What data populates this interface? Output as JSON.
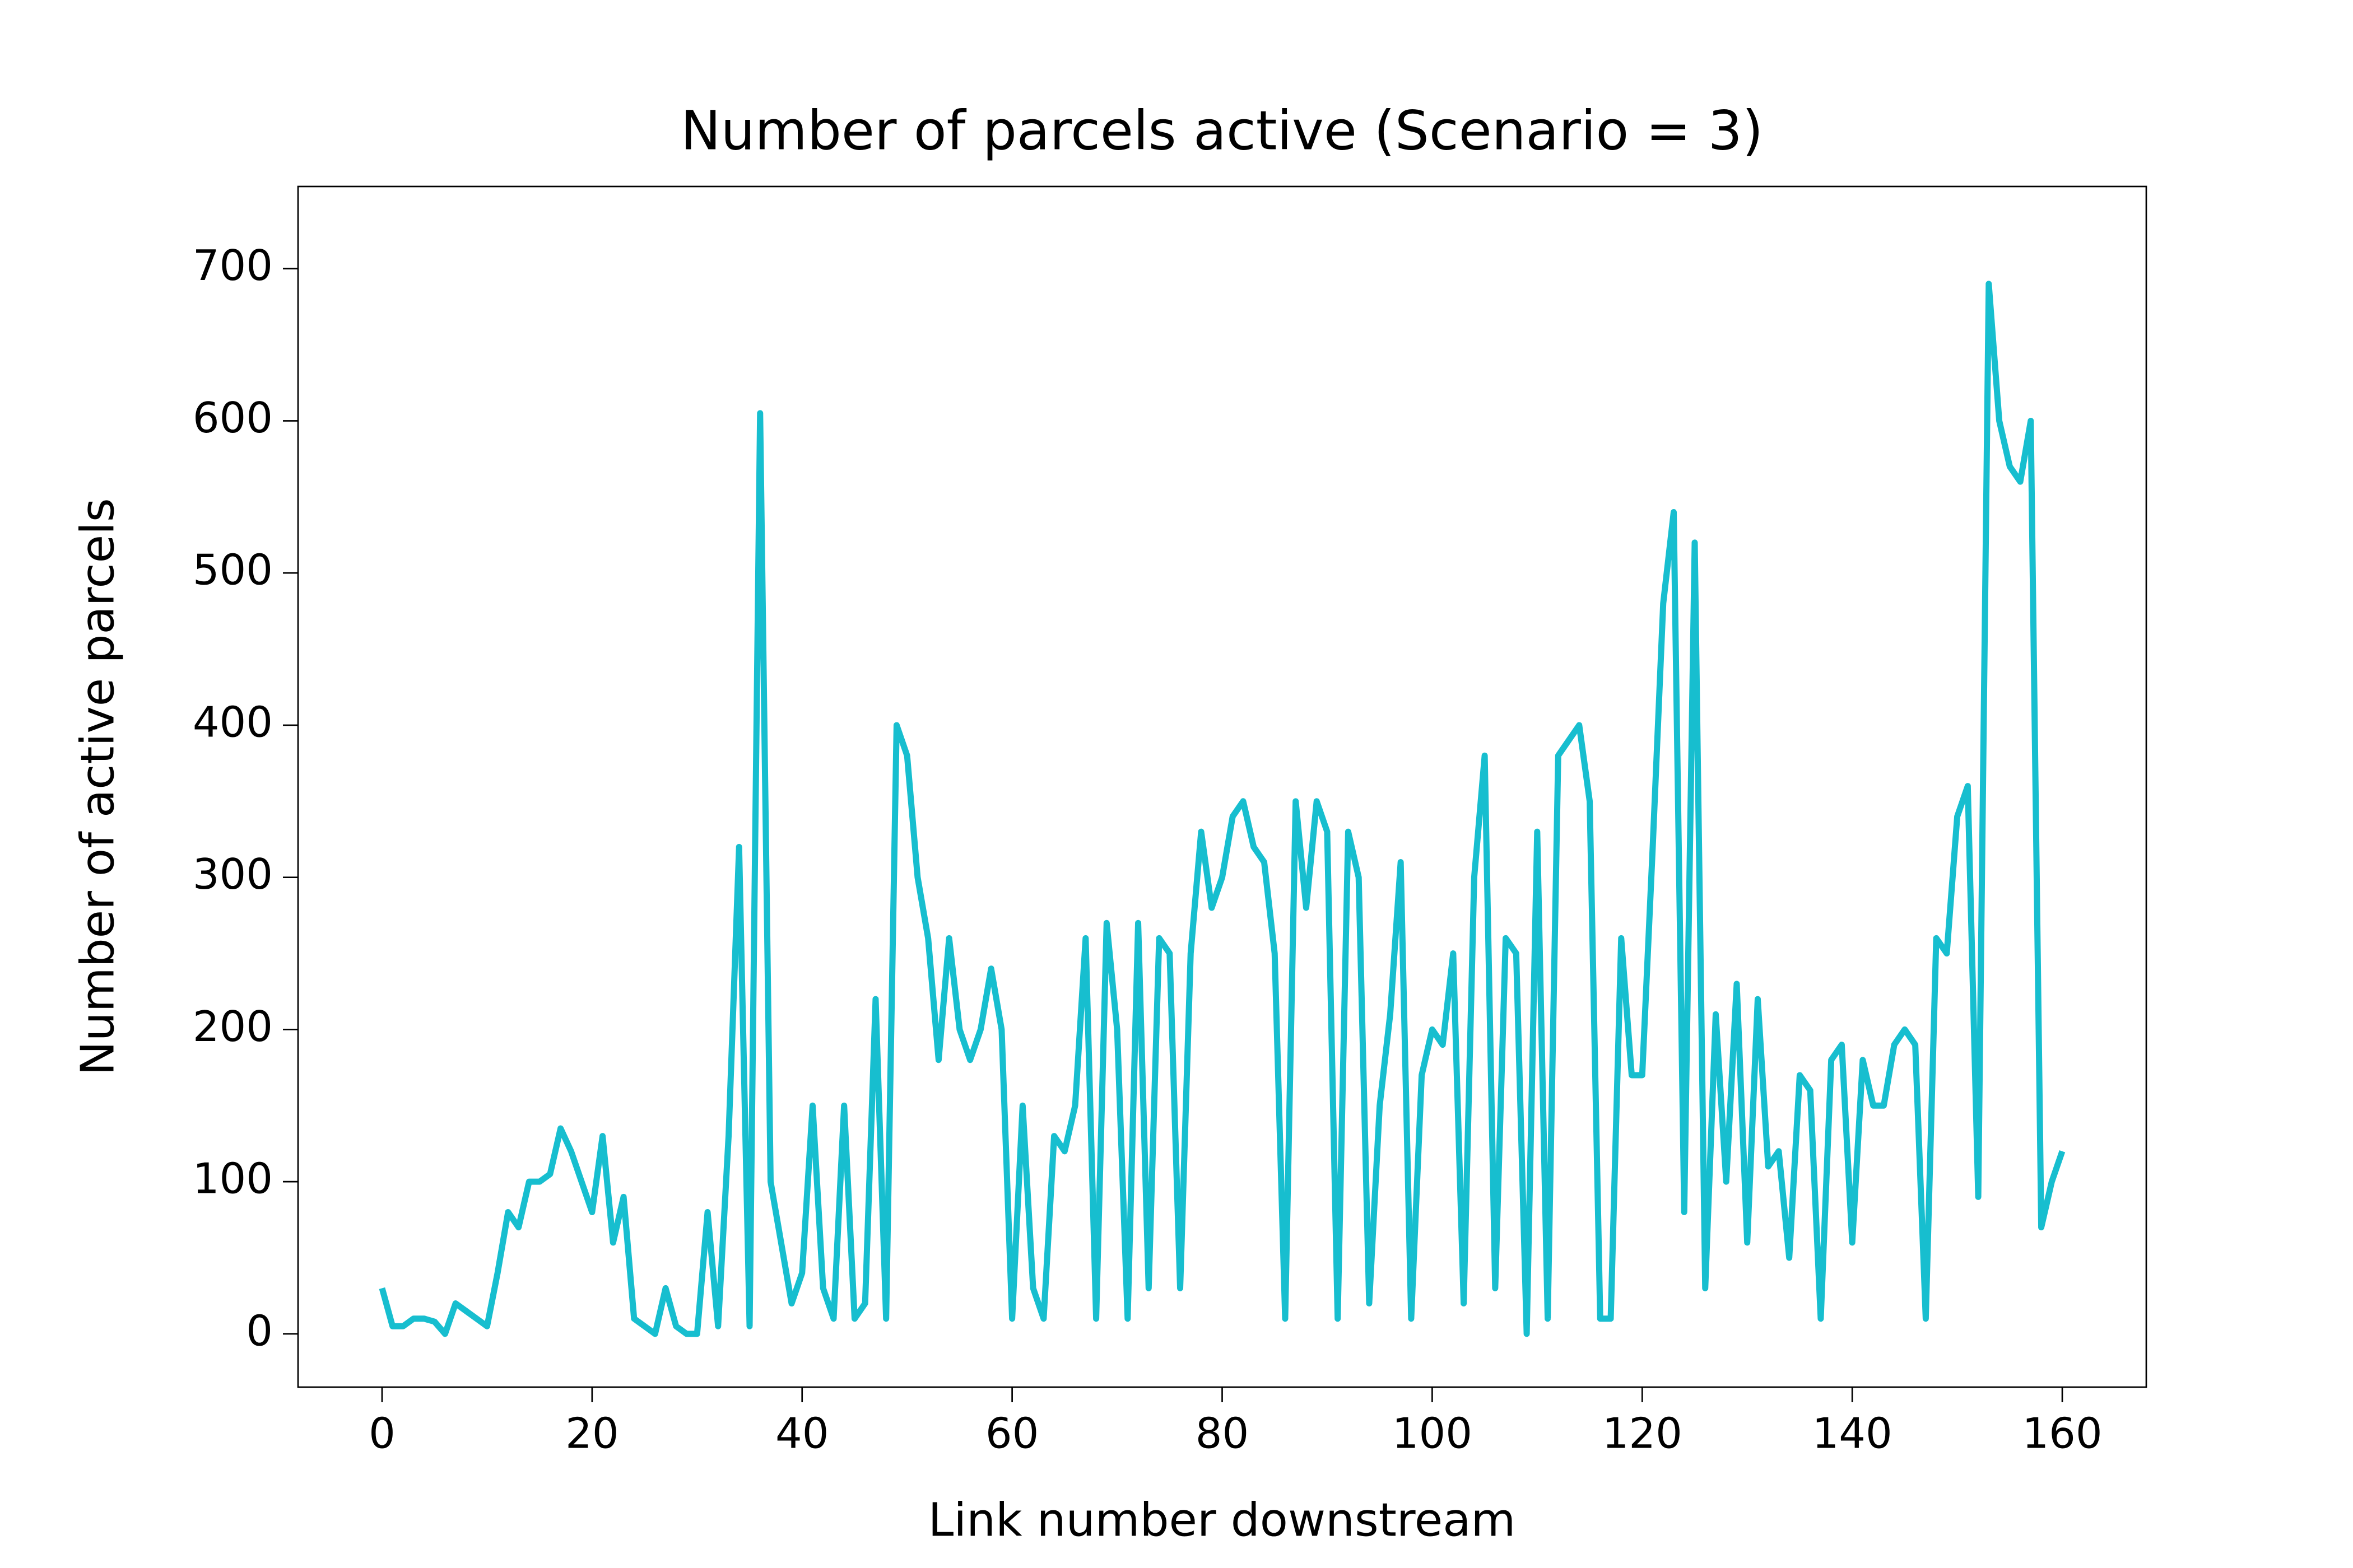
{
  "chart_data": {
    "type": "line",
    "title": "Number of parcels active (Scenario = 3)",
    "x_label": "Link number downstream",
    "y_label": "Number of active parcels",
    "x": [
      0,
      1,
      2,
      3,
      4,
      5,
      6,
      7,
      8,
      9,
      10,
      11,
      12,
      13,
      14,
      15,
      16,
      17,
      18,
      19,
      20,
      21,
      22,
      23,
      24,
      25,
      26,
      27,
      28,
      29,
      30,
      31,
      32,
      33,
      34,
      35,
      36,
      37,
      38,
      39,
      40,
      41,
      42,
      43,
      44,
      45,
      46,
      47,
      48,
      49,
      50,
      51,
      52,
      53,
      54,
      55,
      56,
      57,
      58,
      59,
      60,
      61,
      62,
      63,
      64,
      65,
      66,
      67,
      68,
      69,
      70,
      71,
      72,
      73,
      74,
      75,
      76,
      77,
      78,
      79,
      80,
      81,
      82,
      83,
      84,
      85,
      86,
      87,
      88,
      89,
      90,
      91,
      92,
      93,
      94,
      95,
      96,
      97,
      98,
      99,
      100,
      101,
      102,
      103,
      104,
      105,
      106,
      107,
      108,
      109,
      110,
      111,
      112,
      113,
      114,
      115,
      116,
      117,
      118,
      119,
      120,
      121,
      122,
      123,
      124,
      125,
      126,
      127,
      128,
      129,
      130,
      131,
      132,
      133,
      134,
      135,
      136,
      137,
      138,
      139,
      140,
      141,
      142,
      143,
      144,
      145,
      146,
      147,
      148,
      149,
      150,
      151,
      152,
      153,
      154,
      155,
      156,
      157,
      158,
      159,
      160
    ],
    "series": [
      {
        "color": "#17becf",
        "values": [
          30,
          5,
          5,
          10,
          10,
          8,
          0,
          20,
          15,
          10,
          5,
          40,
          80,
          70,
          100,
          100,
          105,
          135,
          120,
          100,
          80,
          130,
          60,
          90,
          10,
          5,
          0,
          30,
          5,
          0,
          0,
          80,
          5,
          130,
          320,
          5,
          605,
          100,
          60,
          20,
          40,
          150,
          30,
          10,
          150,
          10,
          20,
          220,
          10,
          400,
          380,
          300,
          260,
          180,
          260,
          200,
          180,
          200,
          240,
          200,
          10,
          150,
          30,
          10,
          130,
          120,
          150,
          260,
          10,
          270,
          200,
          10,
          270,
          30,
          260,
          250,
          30,
          250,
          330,
          280,
          300,
          340,
          350,
          320,
          310,
          250,
          10,
          350,
          280,
          350,
          330,
          10,
          330,
          300,
          20,
          150,
          210,
          310,
          10,
          170,
          200,
          190,
          250,
          20,
          300,
          380,
          30,
          260,
          250,
          0,
          330,
          10,
          380,
          390,
          400,
          350,
          10,
          10,
          260,
          170,
          170,
          320,
          480,
          540,
          80,
          520,
          30,
          210,
          100,
          230,
          60,
          220,
          110,
          120,
          50,
          170,
          160,
          10,
          180,
          190,
          60,
          180,
          150,
          150,
          190,
          200,
          190,
          10,
          260,
          250,
          340,
          360,
          90,
          690,
          600,
          570,
          560,
          600,
          70,
          100,
          120
        ]
      }
    ],
    "xlim": [
      -8,
      168
    ],
    "ylim": [
      -35,
      754
    ],
    "xticks": [
      0,
      20,
      40,
      60,
      80,
      100,
      120,
      140,
      160
    ],
    "yticks": [
      0,
      100,
      200,
      300,
      400,
      500,
      600,
      700
    ],
    "grid": false
  }
}
